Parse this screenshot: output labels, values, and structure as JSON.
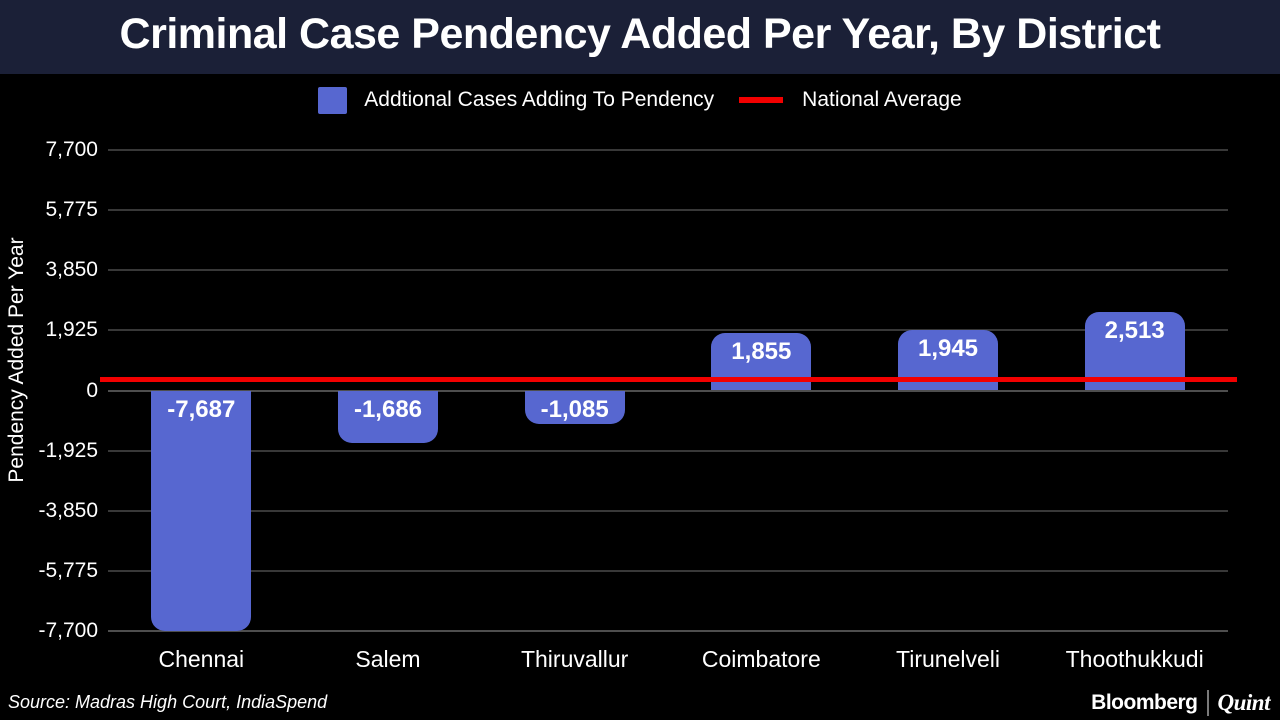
{
  "header": {
    "title": "Criminal Case Pendency Added Per Year, By District"
  },
  "legend": {
    "series_label": "Addtional Cases Adding To Pendency",
    "average_label": "National Average"
  },
  "chart_data": {
    "type": "bar",
    "title": "Criminal Case Pendency Added Per Year, By District",
    "categories": [
      "Chennai",
      "Salem",
      "Thiruvallur",
      "Coimbatore",
      "Tirunelveli",
      "Thoothukkudi"
    ],
    "values": [
      -7687,
      -1686,
      -1085,
      1855,
      1945,
      2513
    ],
    "value_labels": [
      "-7,687",
      "-1,686",
      "-1,085",
      "1,855",
      "1,945",
      "2,513"
    ],
    "national_average": 340,
    "ylabel": "Pendency Added Per Year",
    "xlabel": "",
    "yticks": [
      7700,
      5775,
      3850,
      1925,
      0,
      -1925,
      -3850,
      -5775,
      -7700
    ],
    "ytick_labels": [
      "7,700",
      "5,775",
      "3,850",
      "1,925",
      "0",
      "-1,925",
      "-3,850",
      "-5,775",
      "-7,700"
    ],
    "ylim": [
      -7700,
      7700
    ],
    "grid": true,
    "legend_position": "top",
    "bar_color": "#5767d0",
    "average_line_color": "#f20000"
  },
  "colors": {
    "background": "#000000",
    "title_bar_bg": "#1b2037",
    "text": "#ffffff",
    "gridline": "#383838",
    "zero_line": "#4e4e4e",
    "bottom_line": "#4e4e4e"
  },
  "footer": {
    "source": "Source: Madras High Court, IndiaSpend",
    "brand_primary": "Bloomberg",
    "brand_secondary": "Quint"
  }
}
